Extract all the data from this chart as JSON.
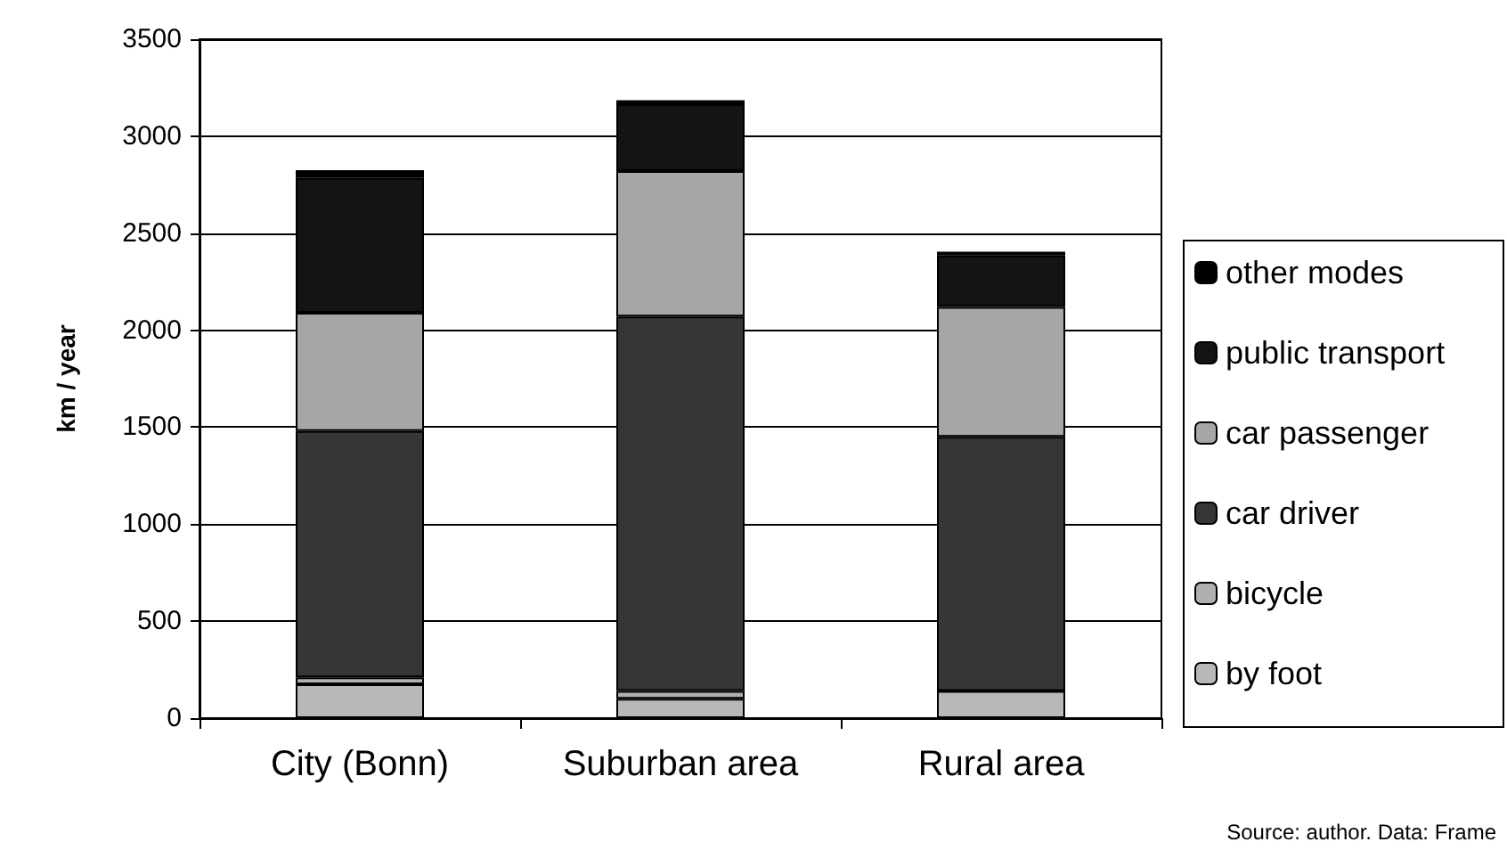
{
  "chart_data": {
    "type": "bar",
    "stacked": true,
    "ylabel": "km / year",
    "categories": [
      "City (Bonn)",
      "Suburban area",
      "Rural area"
    ],
    "series": [
      {
        "name": "by foot",
        "color": "#b8b8b8",
        "values": [
          175,
          100,
          140
        ]
      },
      {
        "name": "bicycle",
        "color": "#b0b0b0",
        "values": [
          35,
          40,
          0
        ]
      },
      {
        "name": "car driver",
        "color": "#363636",
        "values": [
          1270,
          1930,
          1310
        ]
      },
      {
        "name": "car passenger",
        "color": "#a6a6a6",
        "values": [
          610,
          750,
          670
        ]
      },
      {
        "name": "public transport",
        "color": "#141414",
        "values": [
          695,
          345,
          265
        ]
      },
      {
        "name": "other modes",
        "color": "#000000",
        "values": [
          40,
          20,
          20
        ]
      }
    ],
    "ylim": [
      0,
      3500
    ],
    "yticks": [
      0,
      500,
      1000,
      1500,
      2000,
      2500,
      3000,
      3500
    ],
    "grid": "y",
    "legend": "right",
    "annotations": [
      "Source: author. Data: Frame"
    ]
  }
}
